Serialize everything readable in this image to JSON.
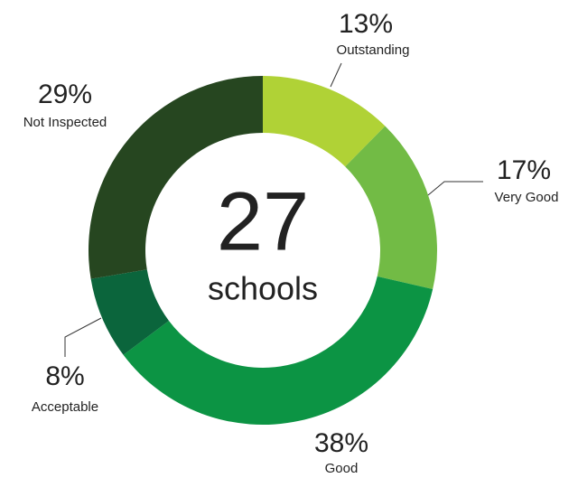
{
  "chart_data": {
    "type": "donut",
    "categories": [
      "Outstanding",
      "Very Good",
      "Good",
      "Acceptable",
      "Not Inspected"
    ],
    "values": [
      13,
      17,
      38,
      8,
      29
    ],
    "value_labels": [
      "13%",
      "17%",
      "38%",
      "8%",
      "29%"
    ],
    "colors": [
      "#b0d236",
      "#72bb45",
      "#0c9444",
      "#0b653c",
      "#264620"
    ],
    "center_value": 27,
    "center_label": "schools"
  }
}
